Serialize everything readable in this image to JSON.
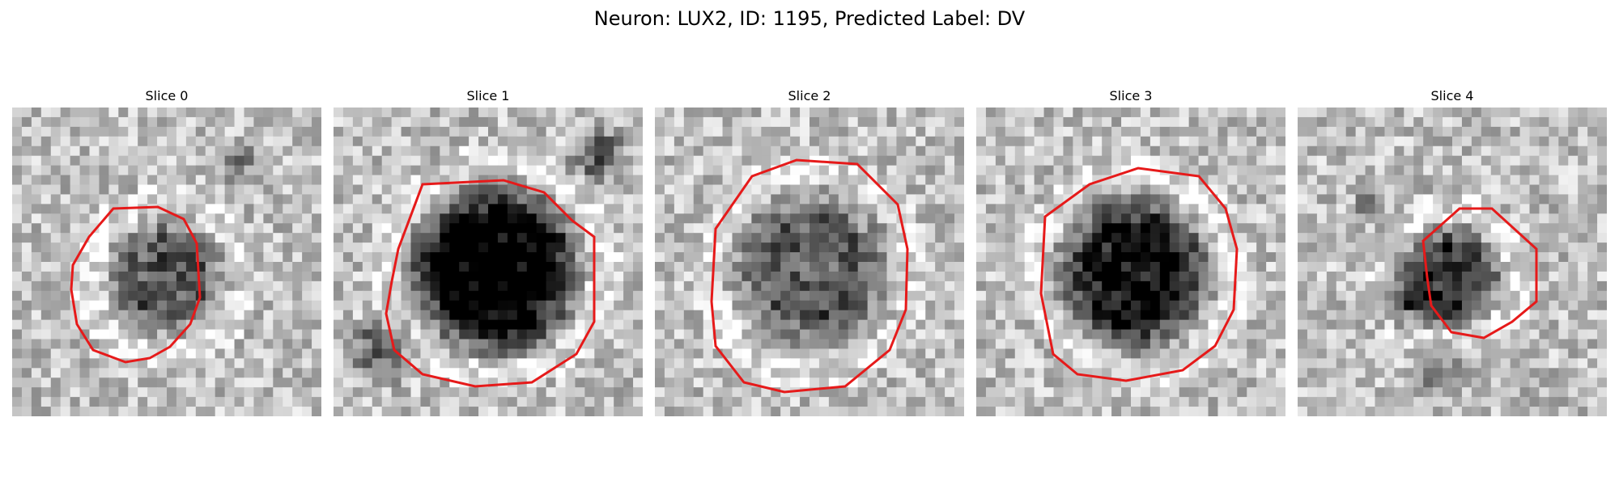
{
  "figure": {
    "title": "Neuron: LUX2, ID: 1195, Predicted Label: DV"
  },
  "colors": {
    "contour": "#e61a1a"
  },
  "panels": [
    {
      "title": "Slice 0"
    },
    {
      "title": "Slice 1"
    },
    {
      "title": "Slice 2"
    },
    {
      "title": "Slice 3"
    },
    {
      "title": "Slice 4"
    }
  ]
}
